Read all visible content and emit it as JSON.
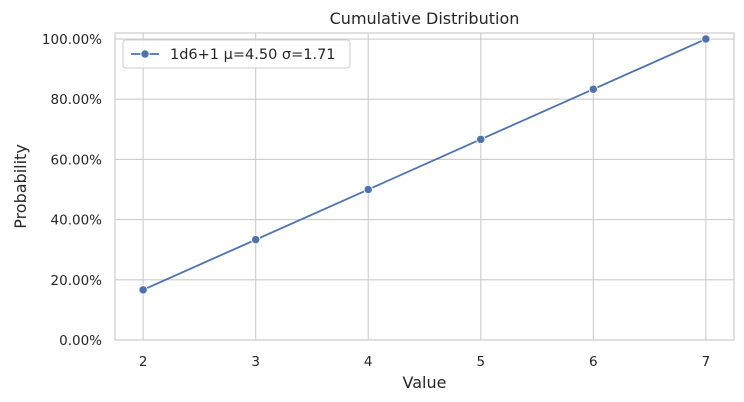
{
  "chart_data": {
    "type": "line",
    "title": "Cumulative Distribution",
    "xlabel": "Value",
    "ylabel": "Probability",
    "x": [
      2,
      3,
      4,
      5,
      6,
      7
    ],
    "x_tick_labels": [
      "2",
      "3",
      "4",
      "5",
      "6",
      "7"
    ],
    "y_tick_values": [
      0,
      0.2,
      0.4,
      0.6,
      0.8,
      1.0
    ],
    "y_tick_labels": [
      "0.00%",
      "20.00%",
      "40.00%",
      "60.00%",
      "80.00%",
      "100.00%"
    ],
    "xlim": [
      1.75,
      7.25
    ],
    "ylim": [
      0,
      1.02
    ],
    "grid": true,
    "legend_position": "top-left",
    "series": [
      {
        "name": "1d6+1 μ=4.50 σ=1.71",
        "color": "#4c72b0",
        "marker": "circle",
        "values": [
          0.1667,
          0.3333,
          0.5,
          0.6667,
          0.8333,
          1.0
        ]
      }
    ]
  }
}
